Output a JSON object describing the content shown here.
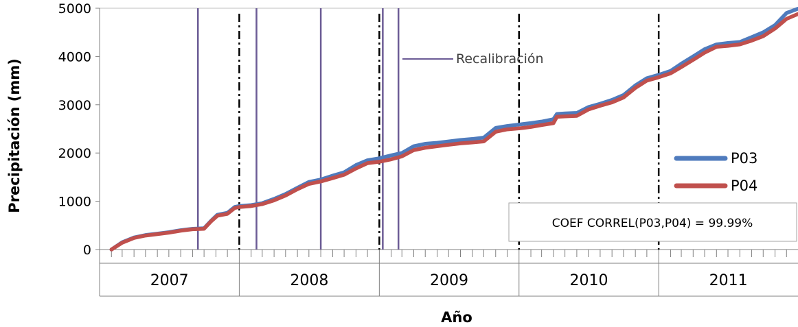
{
  "chart_data": {
    "type": "line",
    "title": "",
    "xlabel": "Año",
    "ylabel": "Precipitación (mm)",
    "ylim": [
      0,
      5000
    ],
    "yticks": [
      0,
      1000,
      2000,
      3000,
      4000,
      5000
    ],
    "xlim": [
      "2007-01-01",
      "2011-12-31"
    ],
    "years": [
      "2007",
      "2008",
      "2009",
      "2010",
      "2011"
    ],
    "grid": false,
    "legend_position": "right",
    "series": [
      {
        "name": "P03",
        "color": "#4f7bbd",
        "x": [
          "2007-02-01",
          "2007-03-01",
          "2007-04-01",
          "2007-05-01",
          "2007-06-01",
          "2007-07-01",
          "2007-08-01",
          "2007-09-01",
          "2007-10-01",
          "2007-10-20",
          "2007-11-05",
          "2007-12-01",
          "2007-12-20",
          "2008-01-01",
          "2008-02-01",
          "2008-03-01",
          "2008-04-01",
          "2008-05-01",
          "2008-06-01",
          "2008-07-01",
          "2008-08-01",
          "2008-09-01",
          "2008-10-01",
          "2008-11-01",
          "2008-12-01",
          "2009-01-01",
          "2009-02-01",
          "2009-03-01",
          "2009-04-01",
          "2009-05-01",
          "2009-06-01",
          "2009-07-01",
          "2009-08-01",
          "2009-09-01",
          "2009-10-01",
          "2009-11-01",
          "2009-12-01",
          "2010-01-01",
          "2010-02-01",
          "2010-03-01",
          "2010-04-01",
          "2010-04-10",
          "2010-05-01",
          "2010-06-01",
          "2010-07-01",
          "2010-08-01",
          "2010-09-01",
          "2010-10-01",
          "2010-11-01",
          "2010-12-01",
          "2011-01-01",
          "2011-02-01",
          "2011-03-01",
          "2011-04-01",
          "2011-05-01",
          "2011-06-01",
          "2011-07-01",
          "2011-08-01",
          "2011-09-01",
          "2011-10-01",
          "2011-11-01",
          "2011-12-01",
          "2011-12-31"
        ],
        "y": [
          0,
          150,
          250,
          300,
          330,
          360,
          400,
          430,
          440,
          600,
          720,
          760,
          880,
          900,
          920,
          960,
          1050,
          1150,
          1280,
          1400,
          1450,
          1530,
          1600,
          1750,
          1850,
          1890,
          1950,
          2000,
          2140,
          2190,
          2210,
          2240,
          2270,
          2290,
          2320,
          2520,
          2560,
          2590,
          2620,
          2650,
          2700,
          2810,
          2820,
          2830,
          2950,
          3020,
          3100,
          3200,
          3400,
          3550,
          3620,
          3700,
          3850,
          4000,
          4150,
          4250,
          4280,
          4300,
          4400,
          4500,
          4650,
          4900,
          4990
        ]
      },
      {
        "name": "P04",
        "color": "#c0504d",
        "x": [
          "2007-02-01",
          "2007-03-01",
          "2007-04-01",
          "2007-05-01",
          "2007-06-01",
          "2007-07-01",
          "2007-08-01",
          "2007-09-01",
          "2007-10-01",
          "2007-10-20",
          "2007-11-05",
          "2007-12-01",
          "2007-12-20",
          "2008-01-01",
          "2008-02-01",
          "2008-03-01",
          "2008-04-01",
          "2008-05-01",
          "2008-06-01",
          "2008-07-01",
          "2008-08-01",
          "2008-09-01",
          "2008-10-01",
          "2008-11-01",
          "2008-12-01",
          "2009-01-01",
          "2009-02-01",
          "2009-03-01",
          "2009-04-01",
          "2009-05-01",
          "2009-06-01",
          "2009-07-01",
          "2009-08-01",
          "2009-09-01",
          "2009-10-01",
          "2009-11-01",
          "2009-12-01",
          "2010-01-01",
          "2010-02-01",
          "2010-03-01",
          "2010-04-01",
          "2010-04-10",
          "2010-05-01",
          "2010-06-01",
          "2010-07-01",
          "2010-08-01",
          "2010-09-01",
          "2010-10-01",
          "2010-11-01",
          "2010-12-01",
          "2011-01-01",
          "2011-02-01",
          "2011-03-01",
          "2011-04-01",
          "2011-05-01",
          "2011-06-01",
          "2011-07-01",
          "2011-08-01",
          "2011-09-01",
          "2011-10-01",
          "2011-11-01",
          "2011-12-01",
          "2011-12-31"
        ],
        "y": [
          0,
          140,
          240,
          290,
          320,
          350,
          390,
          420,
          430,
          590,
          700,
          740,
          860,
          880,
          900,
          940,
          1020,
          1120,
          1250,
          1360,
          1410,
          1480,
          1550,
          1680,
          1790,
          1820,
          1870,
          1930,
          2060,
          2110,
          2140,
          2170,
          2200,
          2220,
          2240,
          2440,
          2490,
          2510,
          2540,
          2580,
          2620,
          2750,
          2760,
          2770,
          2900,
          2980,
          3050,
          3150,
          3350,
          3500,
          3570,
          3650,
          3780,
          3930,
          4080,
          4200,
          4220,
          4250,
          4330,
          4420,
          4580,
          4780,
          4880
        ]
      }
    ],
    "recalibration": {
      "label": "Recalibración",
      "color": "#6b5b95",
      "dates": [
        "2007-09-15",
        "2008-02-15",
        "2008-08-01",
        "2009-01-10",
        "2009-02-20"
      ]
    },
    "year_separators": [
      "2008-01-01",
      "2009-01-01",
      "2010-01-01",
      "2011-01-01"
    ],
    "annotation": "COEF CORREL(P03,P04) = 99.99%"
  }
}
